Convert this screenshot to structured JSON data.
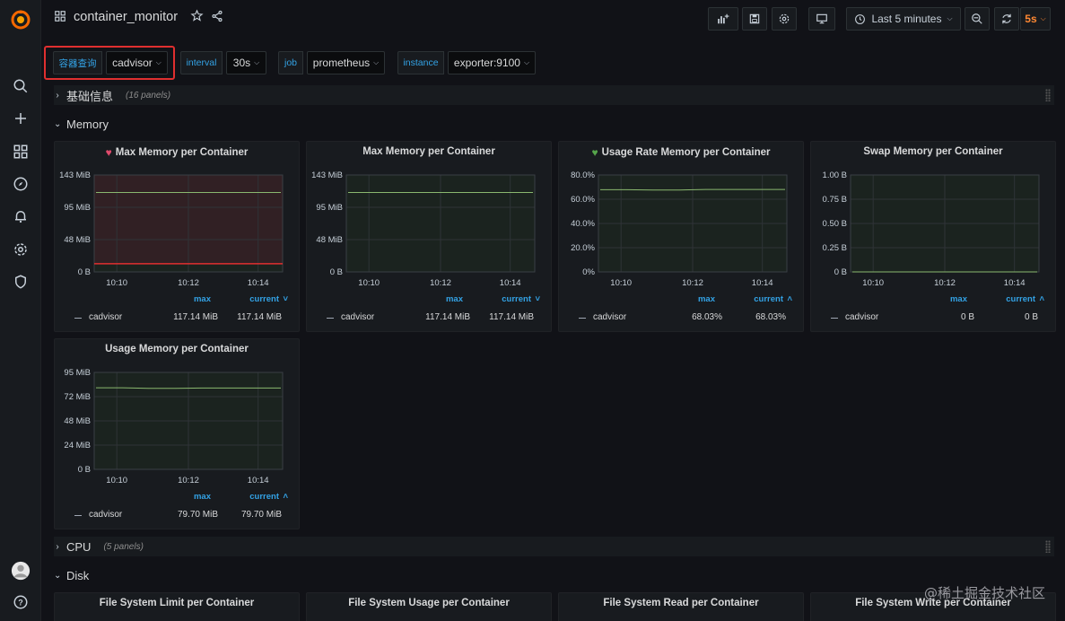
{
  "topbar": {
    "title": "container_monitor",
    "time_range": "Last 5 minutes",
    "refresh": "5s"
  },
  "variables": [
    {
      "label": "容器查询",
      "value": "cadvisor"
    },
    {
      "label": "interval",
      "value": "30s"
    },
    {
      "label": "job",
      "value": "prometheus"
    },
    {
      "label": "instance",
      "value": "exporter:9100"
    }
  ],
  "rows": [
    {
      "title": "基础信息",
      "count": "(16 panels)",
      "collapsed": true
    },
    {
      "title": "Memory",
      "collapsed": false
    },
    {
      "title": "CPU",
      "count": "(5 panels)",
      "collapsed": true
    },
    {
      "title": "Disk",
      "collapsed": false
    }
  ],
  "panels": [
    {
      "title": "Max Memory per Container",
      "alert": "broken-heart",
      "legend": {
        "series": "cadvisor",
        "col1": "max",
        "col2": "current",
        "col2_sort": "down",
        "max": "117.14 MiB",
        "current": "117.14 MiB"
      },
      "chart_data": {
        "type": "line",
        "y_ticks": [
          "143 MiB",
          "95 MiB",
          "48 MiB",
          "0 B"
        ],
        "x_ticks": [
          "10:10",
          "10:12",
          "10:14"
        ],
        "ylim": [
          0,
          143
        ],
        "threshold": 12,
        "threshold_color": "#e02f2f",
        "alert_zone": true,
        "line_color": "#8ab86f",
        "series": [
          {
            "name": "cadvisor",
            "values": [
              117.14,
              117.14,
              117.14,
              117.14,
              117.14,
              117.14,
              117.14
            ]
          }
        ]
      }
    },
    {
      "title": "Max Memory per Container",
      "alert": "",
      "legend": {
        "series": "cadvisor",
        "col1": "max",
        "col2": "current",
        "col2_sort": "down",
        "max": "117.14 MiB",
        "current": "117.14 MiB"
      },
      "chart_data": {
        "type": "line",
        "y_ticks": [
          "143 MiB",
          "95 MiB",
          "48 MiB",
          "0 B"
        ],
        "x_ticks": [
          "10:10",
          "10:12",
          "10:14"
        ],
        "ylim": [
          0,
          143
        ],
        "line_color": "#8ab86f",
        "series": [
          {
            "name": "cadvisor",
            "values": [
              117.14,
              117.14,
              117.14,
              117.14,
              117.14,
              117.14,
              117.14
            ]
          }
        ]
      }
    },
    {
      "title": "Usage Rate Memory per Container",
      "alert": "heart",
      "legend": {
        "series": "cadvisor",
        "col1": "max",
        "col2": "current",
        "col2_sort": "up",
        "max": "68.03%",
        "current": "68.03%"
      },
      "chart_data": {
        "type": "line",
        "y_ticks": [
          "80.0%",
          "60.0%",
          "40.0%",
          "20.0%",
          "0%"
        ],
        "x_ticks": [
          "10:10",
          "10:12",
          "10:14"
        ],
        "ylim": [
          0,
          80
        ],
        "line_color": "#8ab86f",
        "series": [
          {
            "name": "cadvisor",
            "values": [
              67.9,
              67.9,
              67.6,
              67.6,
              68.03,
              68.03,
              68.03,
              68.03
            ]
          }
        ]
      }
    },
    {
      "title": "Swap Memory per Container",
      "alert": "",
      "legend": {
        "series": "cadvisor",
        "col1": "max",
        "col2": "current",
        "col2_sort": "up",
        "max": "0 B",
        "current": "0 B"
      },
      "chart_data": {
        "type": "line",
        "y_ticks": [
          "1.00 B",
          "0.75 B",
          "0.50 B",
          "0.25 B",
          "0 B"
        ],
        "x_ticks": [
          "10:10",
          "10:12",
          "10:14"
        ],
        "ylim": [
          0,
          1
        ],
        "line_color": "#8ab86f",
        "series": [
          {
            "name": "cadvisor",
            "values": [
              0,
              0,
              0,
              0,
              0,
              0,
              0
            ]
          }
        ]
      }
    },
    {
      "title": "Usage Memory per Container",
      "alert": "",
      "legend": {
        "series": "cadvisor",
        "col1": "max",
        "col2": "current",
        "col2_sort": "up",
        "max": "79.70 MiB",
        "current": "79.70 MiB"
      },
      "chart_data": {
        "type": "line",
        "y_ticks": [
          "95 MiB",
          "72 MiB",
          "48 MiB",
          "24 MiB",
          "0 B"
        ],
        "x_ticks": [
          "10:10",
          "10:12",
          "10:14"
        ],
        "ylim": [
          0,
          95
        ],
        "line_color": "#8ab86f",
        "series": [
          {
            "name": "cadvisor",
            "values": [
              79.9,
              79.9,
              79.4,
              79.4,
              79.7,
              79.7,
              79.7,
              79.7
            ]
          }
        ]
      }
    }
  ],
  "disk_panels": [
    "File System Limit per Container",
    "File System Usage per Container",
    "File System Read per Container",
    "File System Write per Container"
  ],
  "watermark": "@稀土掘金技术社区"
}
